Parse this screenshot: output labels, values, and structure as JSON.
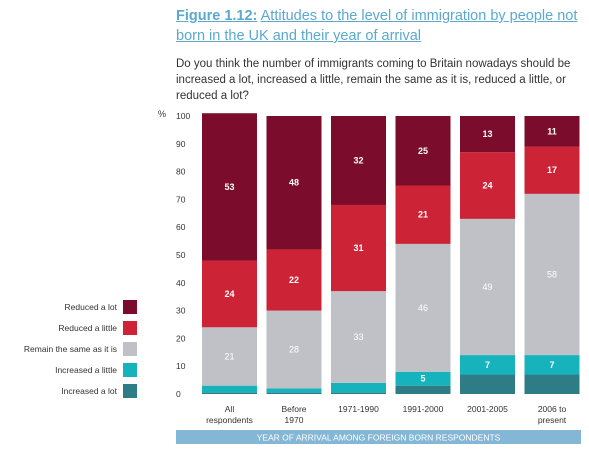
{
  "figure": {
    "number": "Figure 1.12:",
    "title": "Attitudes to the level of immigration by people not born in the UK and their year of arrival"
  },
  "question": "Do you think the number of immigrants coming to Britain nowadays should be increased a lot, increased a little, remain the same as it is, reduced a little, or reduced a lot?",
  "chart_data": {
    "type": "bar",
    "stacked": true,
    "ylabel": "%",
    "ylim": [
      0,
      100
    ],
    "yticks": [
      0,
      10,
      20,
      30,
      40,
      50,
      60,
      70,
      80,
      90,
      100
    ],
    "xlabel": "YEAR OF ARRIVAL AMONG FOREIGN BORN RESPONDENTS",
    "categories": [
      [
        "All",
        "respondents"
      ],
      [
        "Before",
        "1970"
      ],
      [
        "1971-1990"
      ],
      [
        "1991-2000"
      ],
      [
        "2001-2005"
      ],
      [
        "2006 to",
        "present"
      ]
    ],
    "series": [
      {
        "name": "Increased a lot",
        "color": "#2e7d86",
        "values": [
          0.5,
          0.5,
          0.5,
          3,
          7,
          7
        ],
        "labels": [
          "",
          "",
          "",
          "",
          "",
          ""
        ]
      },
      {
        "name": "Increased a little",
        "color": "#16b3bd",
        "values": [
          2.5,
          1.5,
          3.5,
          5,
          7,
          7
        ],
        "labels": [
          "",
          "",
          "",
          "5",
          "7",
          "7"
        ]
      },
      {
        "name": "Remain the same as it is",
        "color": "#bfc1c6",
        "values": [
          21,
          28,
          33,
          46,
          49,
          58
        ],
        "labels": [
          "21",
          "28",
          "33",
          "46",
          "49",
          "58"
        ]
      },
      {
        "name": "Reduced a little",
        "color": "#cc2336",
        "values": [
          24,
          22,
          31,
          21,
          24,
          17
        ],
        "labels": [
          "24",
          "22",
          "31",
          "21",
          "24",
          "17"
        ]
      },
      {
        "name": "Reduced a lot",
        "color": "#7b0c2c",
        "values": [
          53,
          48,
          32,
          25,
          13,
          11
        ],
        "labels": [
          "53",
          "48",
          "32",
          "25",
          "13",
          "11"
        ]
      }
    ],
    "legend_position": "left",
    "legend_order": [
      "Reduced a lot",
      "Reduced a little",
      "Remain the same as it is",
      "Increased a little",
      "Increased a lot"
    ]
  },
  "colors": {
    "title": "#5ba9cd",
    "axis_bar": "#84b7d6",
    "tick_text": "#333333",
    "label_light": "#ffffff"
  }
}
